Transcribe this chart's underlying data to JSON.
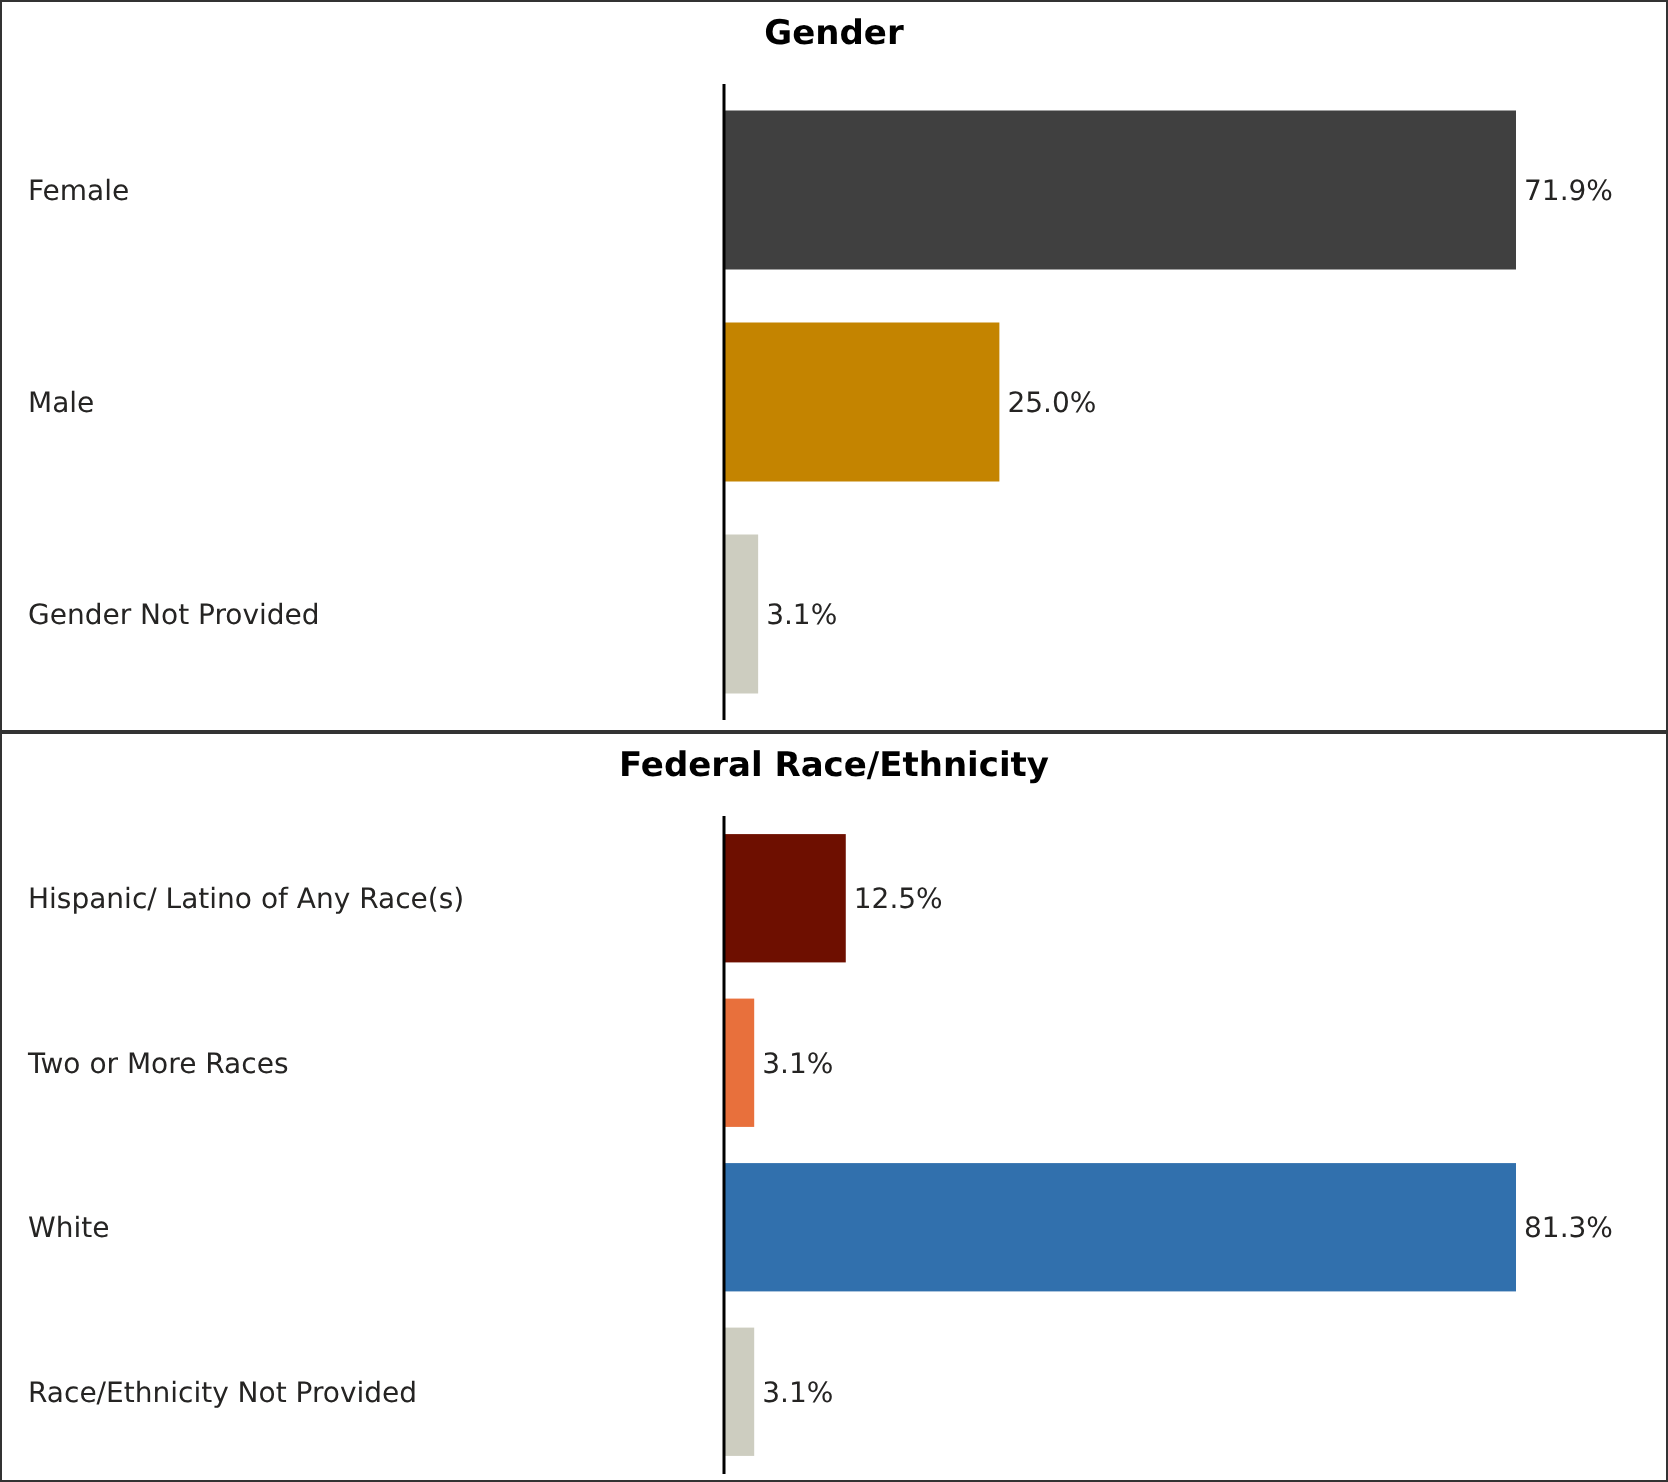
{
  "chart_data": [
    {
      "type": "bar",
      "orientation": "horizontal",
      "title": "Gender",
      "categories": [
        "Female",
        "Male",
        "Gender Not Provided"
      ],
      "values": [
        71.9,
        25.0,
        3.1
      ],
      "colors": [
        "#404040",
        "#c48400",
        "#cdcdc0"
      ],
      "value_labels": [
        "71.9%",
        "25.0%",
        "3.1%"
      ]
    },
    {
      "type": "bar",
      "orientation": "horizontal",
      "title": "Federal Race/Ethnicity",
      "categories": [
        "Hispanic/ Latino of Any Race(s)",
        "Two or More Races",
        "White",
        "Race/Ethnicity Not Provided"
      ],
      "values": [
        12.5,
        3.1,
        81.3,
        3.1
      ],
      "colors": [
        "#6e0f00",
        "#e8703c",
        "#3170ad",
        "#cdcdc0"
      ],
      "value_labels": [
        "12.5%",
        "3.1%",
        "81.3%",
        "3.1%"
      ]
    }
  ]
}
